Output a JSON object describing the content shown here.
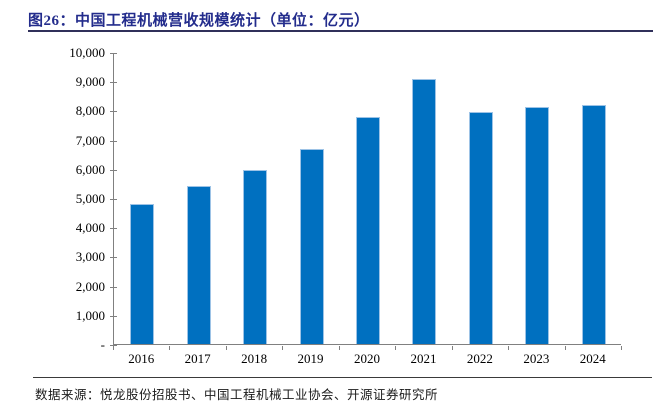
{
  "header": {
    "title": "图26：中国工程机械营收规模统计（单位：亿元）"
  },
  "footer": {
    "source_note": "数据来源：悦龙股份招股书、中国工程机械工业协会、开源证券研究所"
  },
  "colors": {
    "title_text": "#232C8C",
    "title_rule": "#30305A",
    "bar_fill": "#0070C0",
    "bar_border": "#9DC3E6",
    "axis_line": "#808080",
    "axis_text": "#000000"
  },
  "chart_data": {
    "type": "bar",
    "title": "中国工程机械营收规模统计",
    "unit": "亿元",
    "categories": [
      "2016",
      "2017",
      "2018",
      "2019",
      "2020",
      "2021",
      "2022",
      "2023",
      "2024"
    ],
    "values": [
      4790,
      5420,
      5970,
      6690,
      7760,
      9070,
      7960,
      8100,
      8180
    ],
    "xlabel": "",
    "ylabel": "",
    "ylim": [
      0,
      10000
    ],
    "y_tick_step": 1000,
    "y_tick_labels": [
      "-",
      "1,000",
      "2,000",
      "3,000",
      "4,000",
      "5,000",
      "6,000",
      "7,000",
      "8,000",
      "9,000",
      "10,000"
    ],
    "grid": false,
    "legend": false
  }
}
